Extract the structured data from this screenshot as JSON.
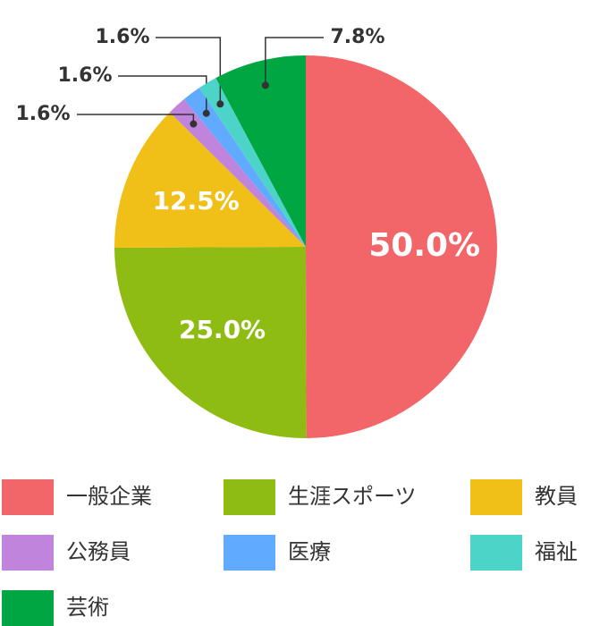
{
  "chart_data": {
    "type": "pie",
    "categories": [
      "一般企業",
      "生涯スポーツ",
      "教員",
      "公務員",
      "医療",
      "福祉",
      "芸術"
    ],
    "values": [
      50.0,
      25.0,
      12.5,
      1.6,
      1.6,
      1.6,
      7.8
    ],
    "value_labels": [
      "50.0%",
      "25.0%",
      "12.5%",
      "1.6%",
      "1.6%",
      "1.6%",
      "7.8%"
    ],
    "colors": [
      "#f26568",
      "#8fbc12",
      "#f0c018",
      "#c084dd",
      "#60aaff",
      "#4dd4c8",
      "#00a642"
    ],
    "legend": "bottom"
  }
}
